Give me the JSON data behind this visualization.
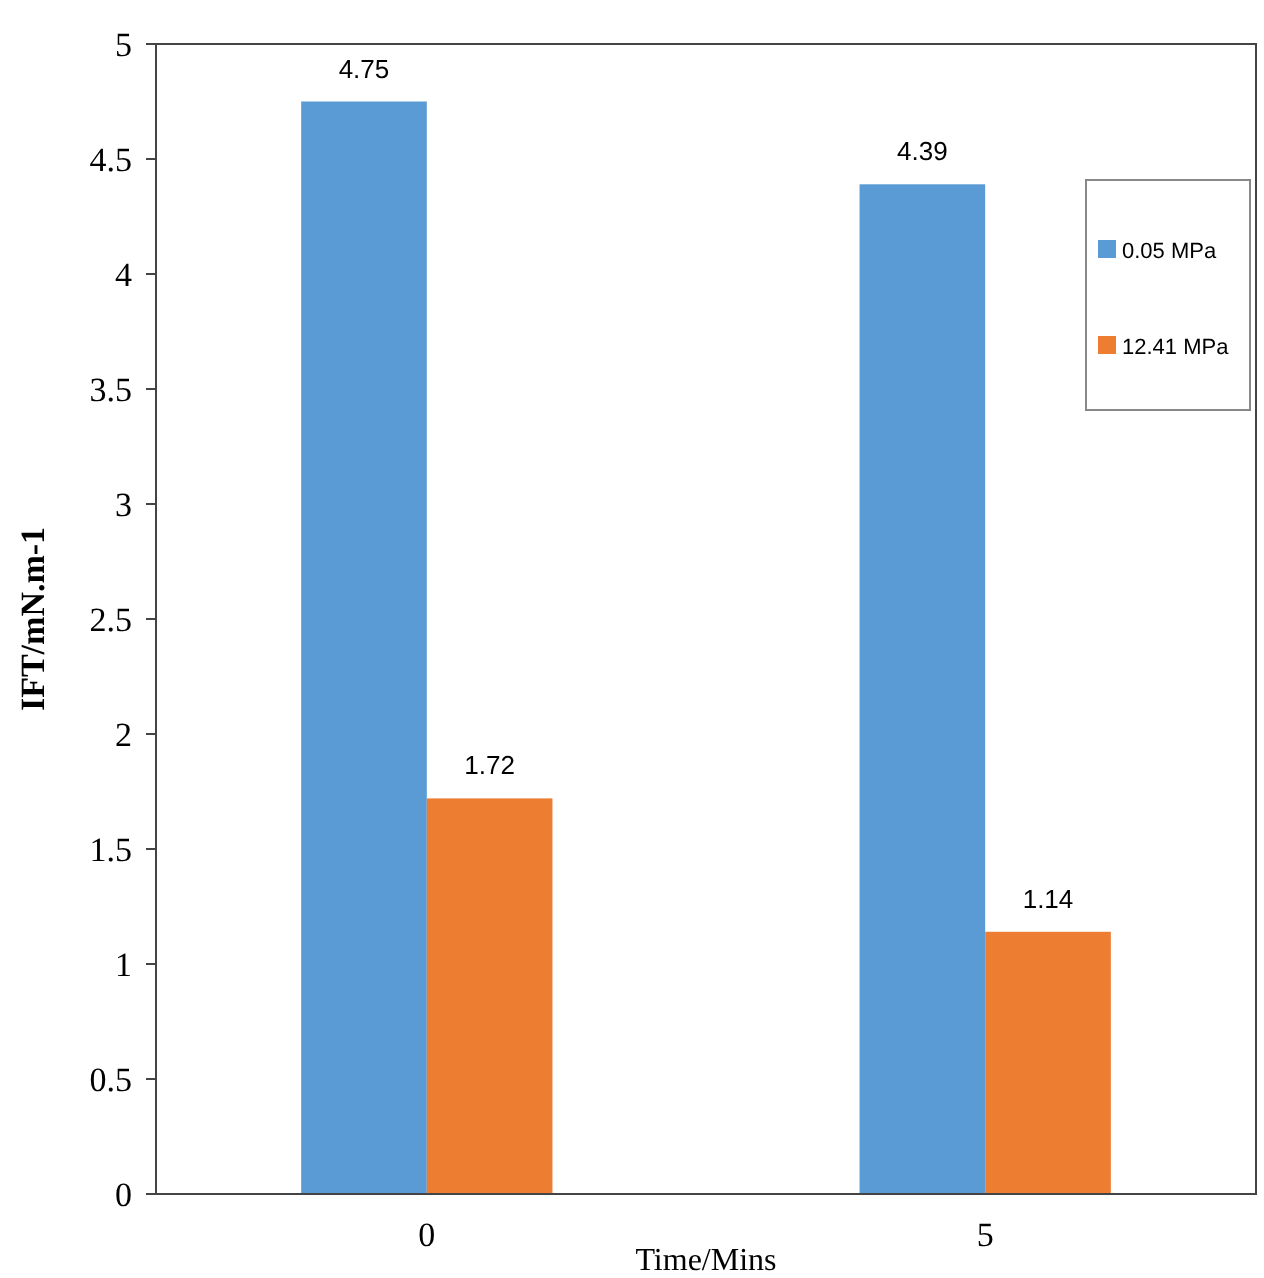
{
  "chart_data": {
    "type": "bar",
    "xlabel": "Time/Mins",
    "ylabel": "IFT/mN.m-1",
    "categories": [
      "0",
      "5"
    ],
    "series": [
      {
        "name": "0.05 MPa",
        "color": "#5b9bd5",
        "values": [
          4.75,
          4.39
        ]
      },
      {
        "name": "12.41 MPa",
        "color": "#ed7d31",
        "values": [
          1.72,
          1.14
        ]
      }
    ],
    "ylim": [
      0,
      5
    ],
    "yticks": [
      0,
      0.5,
      1,
      1.5,
      2,
      2.5,
      3,
      3.5,
      4,
      4.5,
      5
    ],
    "data_labels": true,
    "legend": "top right",
    "grid": false
  }
}
